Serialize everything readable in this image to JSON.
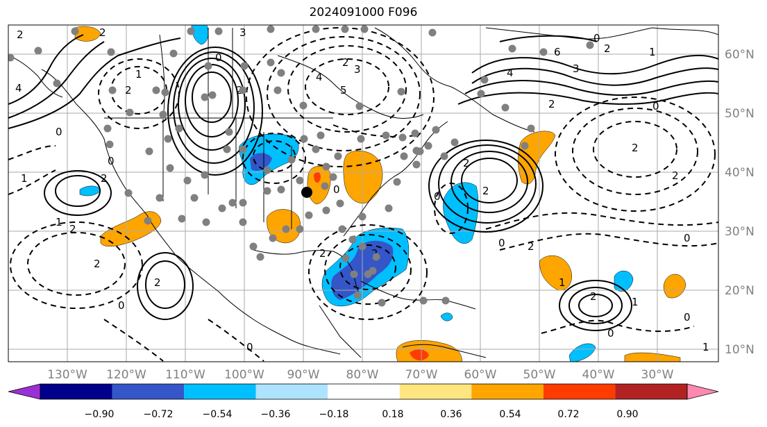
{
  "title": "2024091000 F096",
  "longitude_labels": [
    "130°W",
    "120°W",
    "110°W",
    "100°W",
    "90°W",
    "80°W",
    "70°W",
    "60°W",
    "50°W",
    "40°W",
    "30°W"
  ],
  "latitude_labels": [
    "60°N",
    "50°N",
    "40°N",
    "30°N",
    "20°N",
    "10°N"
  ],
  "colorbar": {
    "tick_labels": [
      "−0.90",
      "−0.72",
      "−0.54",
      "−0.36",
      "−0.18",
      "0.18",
      "0.36",
      "0.54",
      "0.72",
      "0.90"
    ],
    "colors": [
      "#9b30d6",
      "#00008b",
      "#3456c8",
      "#00bfff",
      "#aee3ff",
      "#ffffff",
      "#ffe680",
      "#ffa500",
      "#ff3c00",
      "#b22222",
      "#ff88b0"
    ]
  },
  "contour_labels": [
    "2",
    "2",
    "4",
    "2",
    "1",
    "0",
    "2",
    "3",
    "4",
    "5",
    "2",
    "3",
    "6",
    "0",
    "3",
    "4",
    "2",
    "0",
    "2",
    "1",
    "2",
    "0",
    "1",
    "2",
    "2",
    "2",
    "0",
    "2",
    "0",
    "2",
    "2",
    "1",
    "0",
    "2",
    "2",
    "0",
    "0",
    "1",
    "2",
    "0",
    "0",
    "1",
    "2",
    "0",
    "1",
    "2",
    "0"
  ],
  "station_marker": "location-dot"
}
